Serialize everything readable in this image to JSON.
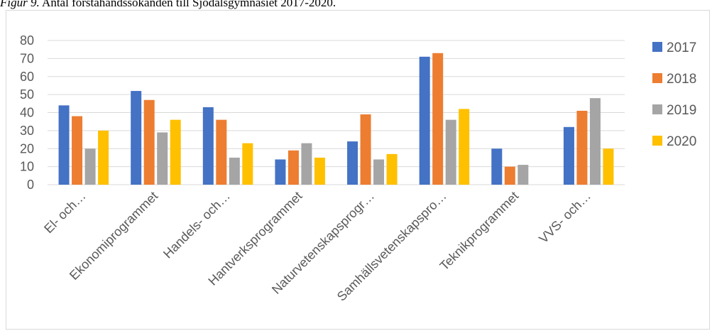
{
  "caption": {
    "label": "Figur 9.",
    "text": "Antal förstahandssökanden till Sjödalsgymnasiet 2017-2020."
  },
  "colors": {
    "grid": "#d9d9d9",
    "axis_text": "#595959"
  },
  "chart_data": {
    "type": "bar",
    "title": "",
    "xlabel": "",
    "ylabel": "",
    "ylim": [
      0,
      80
    ],
    "yticks": [
      0,
      10,
      20,
      30,
      40,
      50,
      60,
      70,
      80
    ],
    "grid": true,
    "legend_position": "right",
    "categories": [
      "El- och…",
      "Ekonomiprogrammet",
      "Handels- och…",
      "Hantverksprogrammet",
      "Naturvetenskapsprogr…",
      "Samhällsvetenskapspro…",
      "Teknikprogrammet",
      "VVS- och…"
    ],
    "series": [
      {
        "name": "2017",
        "color": "#4472C4",
        "values": [
          44,
          52,
          43,
          14,
          24,
          71,
          20,
          32
        ]
      },
      {
        "name": "2018",
        "color": "#ED7D31",
        "values": [
          38,
          47,
          36,
          19,
          39,
          73,
          10,
          41
        ]
      },
      {
        "name": "2019",
        "color": "#A5A5A5",
        "values": [
          20,
          29,
          15,
          23,
          14,
          36,
          11,
          48
        ]
      },
      {
        "name": "2020",
        "color": "#FFC000",
        "values": [
          30,
          36,
          23,
          15,
          17,
          42,
          null,
          20
        ]
      }
    ]
  }
}
